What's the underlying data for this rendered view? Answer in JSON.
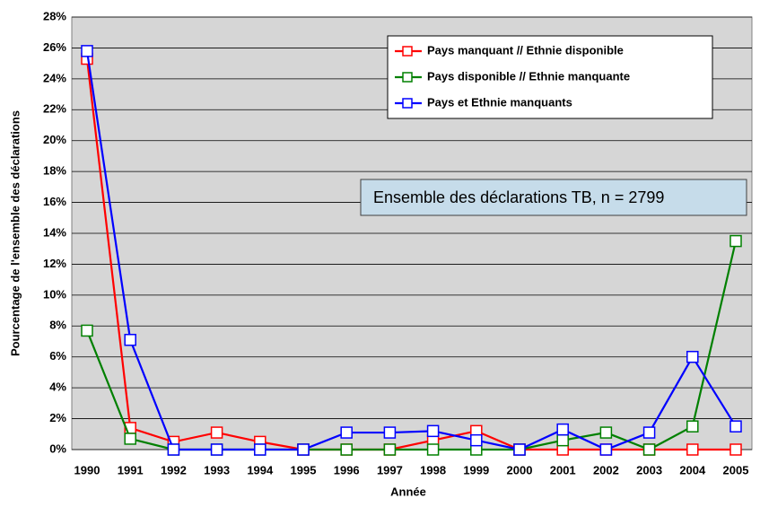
{
  "chart_data": {
    "type": "line",
    "categories": [
      "1990",
      "1991",
      "1992",
      "1993",
      "1994",
      "1995",
      "1996",
      "1997",
      "1998",
      "1999",
      "2000",
      "2001",
      "2002",
      "2003",
      "2004",
      "2005"
    ],
    "series": [
      {
        "name": "Pays manquant // Ethnie disponible",
        "color": "#ff0000",
        "values": [
          25.3,
          1.4,
          0.5,
          1.1,
          0.5,
          0,
          0,
          0,
          0.6,
          1.2,
          0,
          0,
          0,
          0,
          0,
          0
        ]
      },
      {
        "name": "Pays disponible // Ethnie manquante",
        "color": "#008000",
        "values": [
          7.7,
          0.7,
          0,
          0,
          0,
          0,
          0,
          0,
          0,
          0,
          0,
          0.6,
          1.1,
          0,
          1.5,
          13.5
        ]
      },
      {
        "name": "Pays et Ethnie manquants",
        "color": "#0000ff",
        "values": [
          25.8,
          7.1,
          0,
          0,
          0,
          0,
          1.1,
          1.1,
          1.2,
          0.6,
          0,
          1.3,
          0,
          1.1,
          6.0,
          1.5
        ]
      }
    ],
    "ylim": [
      0,
      28
    ],
    "yticks": [
      {
        "value": 0,
        "label": "0%"
      },
      {
        "value": 2,
        "label": "2%"
      },
      {
        "value": 4,
        "label": "4%"
      },
      {
        "value": 6,
        "label": "6%"
      },
      {
        "value": 8,
        "label": "8%"
      },
      {
        "value": 10,
        "label": "10%"
      },
      {
        "value": 12,
        "label": "12%"
      },
      {
        "value": 14,
        "label": "14%"
      },
      {
        "value": 16,
        "label": "16%"
      },
      {
        "value": 18,
        "label": "18%"
      },
      {
        "value": 20,
        "label": "20%"
      },
      {
        "value": 22,
        "label": "22%"
      },
      {
        "value": 24,
        "label": "24%"
      },
      {
        "value": 26,
        "label": "26%"
      },
      {
        "value": 28,
        "label": "28%"
      }
    ],
    "grid": true,
    "x_label": "Année",
    "y_label": "Pourcentage de l'ensemble des déclarations",
    "annotation": "Ensemble des déclarations TB, n = 2799",
    "legend": "upper right"
  }
}
